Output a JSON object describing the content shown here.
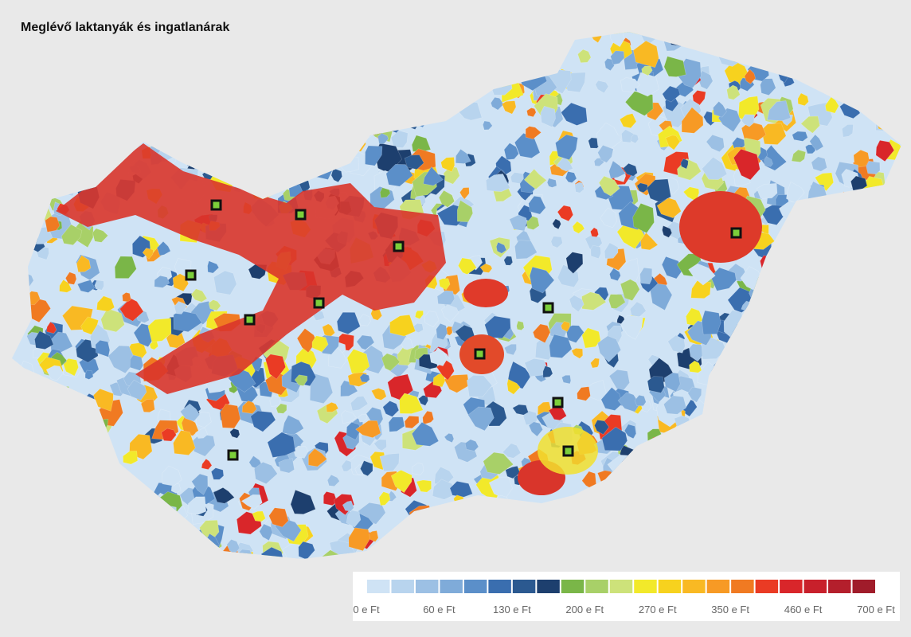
{
  "title": "Meglévő laktanyák és ingatlanárak",
  "legend": {
    "labels": [
      "0 e Ft",
      "60 e Ft",
      "130 e Ft",
      "200 e Ft",
      "270 e Ft",
      "350 e Ft",
      "460 e Ft",
      "700 e Ft"
    ],
    "colors": [
      "#cfe3f5",
      "#b8d4ee",
      "#9cc0e4",
      "#7fabd9",
      "#5b8fc9",
      "#3a6eaf",
      "#2b5990",
      "#1d3f6e",
      "#7ab648",
      "#a8d068",
      "#cde27a",
      "#f2e92a",
      "#f7d21e",
      "#f9b923",
      "#f79a25",
      "#f07a22",
      "#ea3b24",
      "#d9262a",
      "#c8202b",
      "#b41f2c",
      "#a01c2a"
    ]
  }
}
